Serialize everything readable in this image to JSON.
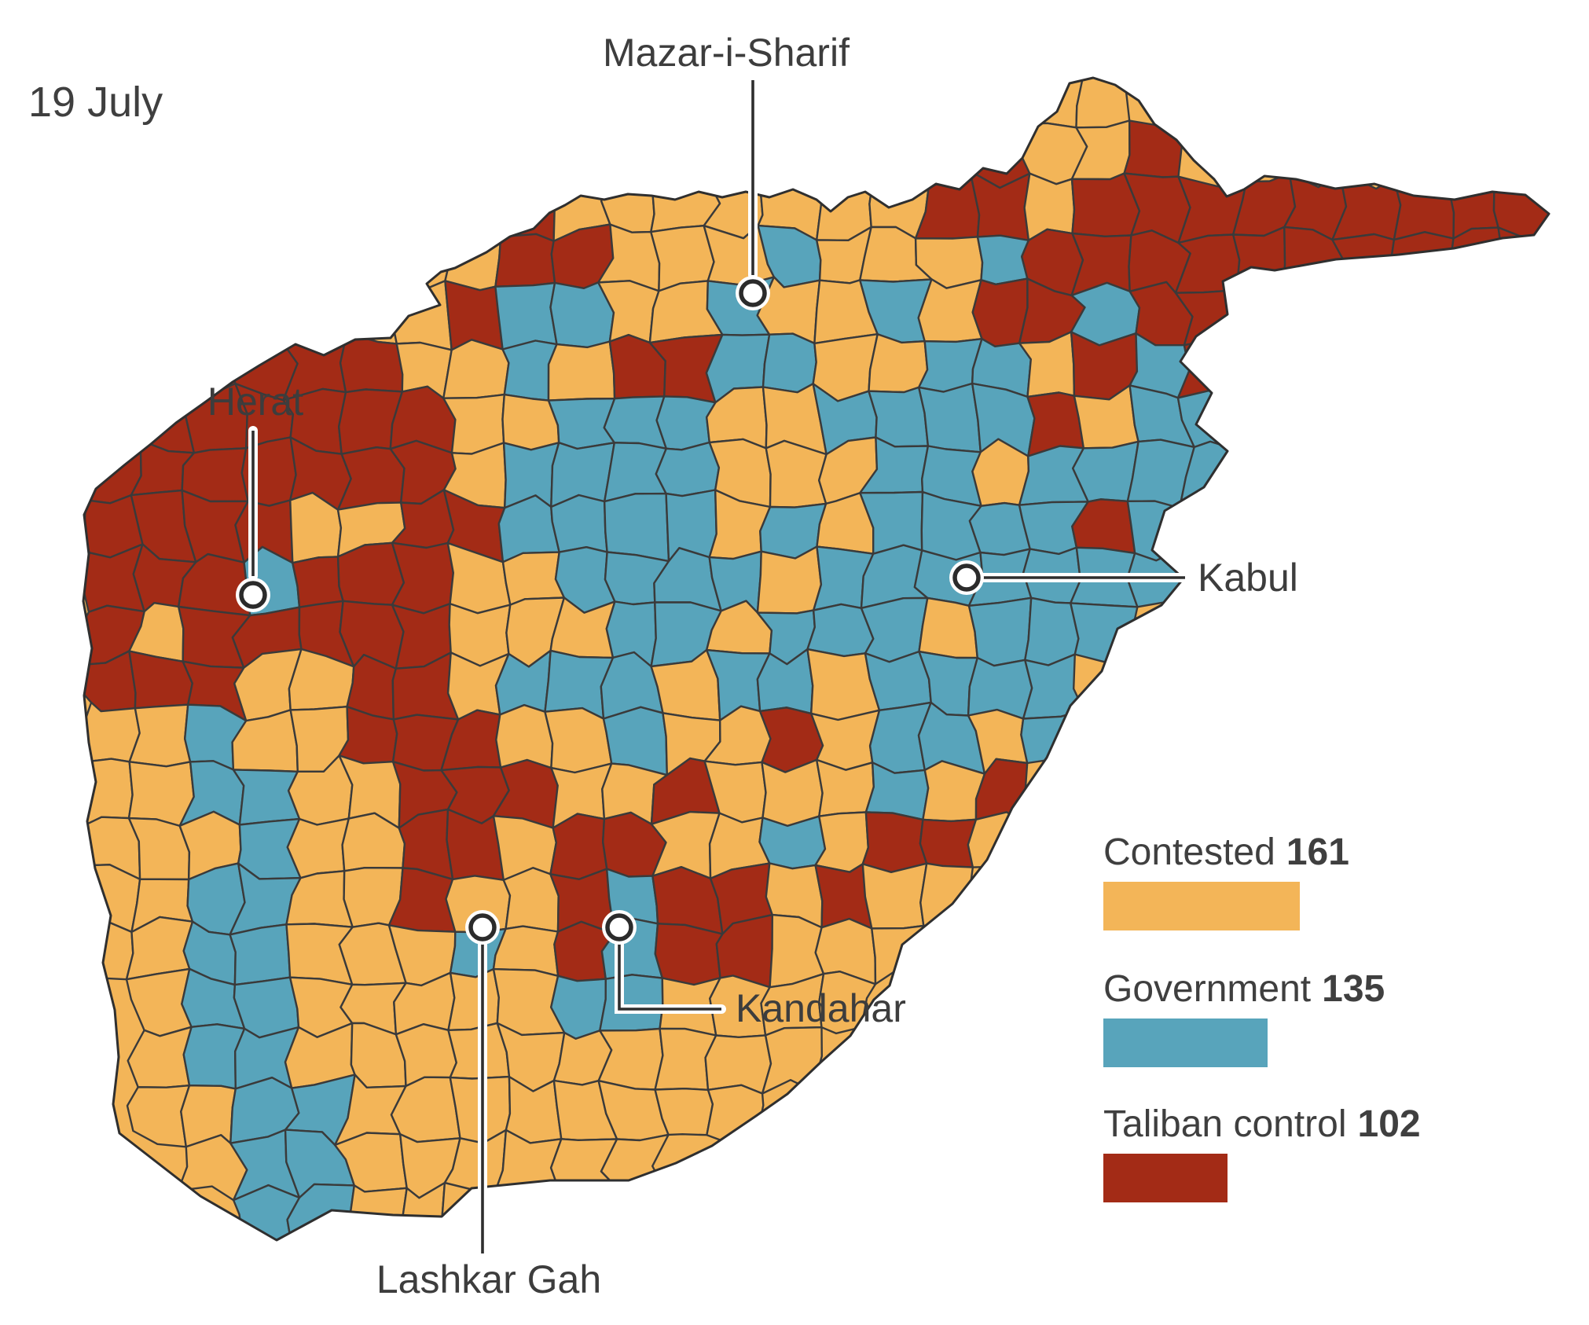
{
  "date_label": "19 July",
  "map": {
    "country": "Afghanistan",
    "unit": "district control status",
    "grid_legend": {
      "C": "contested",
      "G": "government",
      "T": "taliban",
      ".": "outside"
    },
    "grid": [
      "..................CC........",
      ".................TCCT.......",
      "........TCCCCCCCTTCTTTTTTTTT",
      "......CCTTCCCGCCCGTTTTTTTTTT",
      ".....CCTGGCCGCCGCTTGTT......",
      "..TTTTCCGCTTGGCCGGCTGT......",
      "TTTTTTTCCGGGCCGGGGTCGG......",
      "TTTTTTTCGGGGCCCGGCGGGG......",
      "TTTTCCTTGGGGCGCGGGGTGG......",
      "TTTGTTTCCGGGGCGGGGGGG.......",
      "TCTTTTTCCCGGCGGGCGGG........",
      "TTTCCTTCGGGCGGCGGGG.........",
      "CCGCCTTTCCGCCTCGGCG.........",
      "CCGGCCTTTCCTCCCGCT..........",
      "CCCGCCTTCTTCCGCTTC..........",
      "CCGGCCTCCTGTTCTCC...........",
      "CCGGCCCGCTGTTCCC............",
      ".CGGCCCCCGGCCCC.............",
      ".CGGCCCCCCCCCC..............",
      ".CCGGCCCCCCCC...............",
      "..CGGCCCCCC.................",
      "...GGCCC...................."
    ]
  },
  "cities": [
    {
      "name": "Mazar-i-Sharif"
    },
    {
      "name": "Herat"
    },
    {
      "name": "Kabul"
    },
    {
      "name": "Kandahar"
    },
    {
      "name": "Lashkar Gah"
    }
  ],
  "legend": {
    "items": [
      {
        "label": "Contested",
        "value": 161,
        "key": "contested"
      },
      {
        "label": "Government",
        "value": 135,
        "key": "government"
      },
      {
        "label": "Taliban control",
        "value": 102,
        "key": "taliban"
      }
    ]
  },
  "colors": {
    "contested": "#F3B558",
    "government": "#58A4BB",
    "taliban": "#A32B16",
    "district_border": "#3A3A3A",
    "country_border": "#2F2F2F",
    "label_text": "#3D3D3D",
    "background": "#FFFFFF"
  }
}
